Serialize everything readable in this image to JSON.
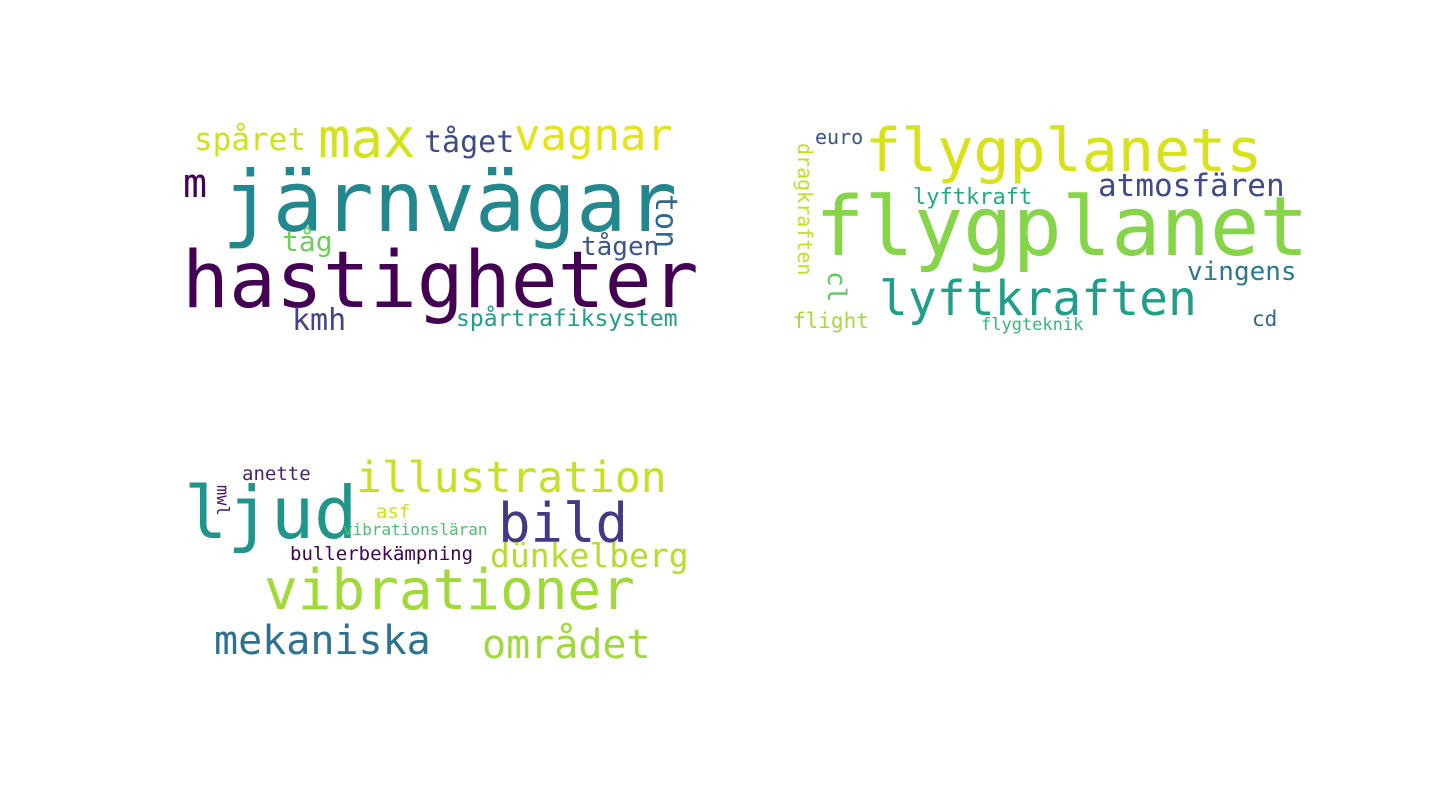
{
  "clouds": [
    {
      "words": [
        {
          "text": "järnvägar",
          "color": "#23888e"
        },
        {
          "text": "hastigheter",
          "color": "#440154"
        },
        {
          "text": "max",
          "color": "#d2e21b"
        },
        {
          "text": "vagnar",
          "color": "#e5e419"
        },
        {
          "text": "spåret",
          "color": "#d0e11c"
        },
        {
          "text": "tåget",
          "color": "#3e4a89"
        },
        {
          "text": "m",
          "color": "#440154"
        },
        {
          "text": "ton",
          "color": "#31688e"
        },
        {
          "text": "tåg",
          "color": "#6ece58"
        },
        {
          "text": "tågen",
          "color": "#3b528b"
        },
        {
          "text": "kmh",
          "color": "#414487"
        },
        {
          "text": "spårtrafiksystem",
          "color": "#1f9e89"
        }
      ]
    },
    {
      "words": [
        {
          "text": "flygplanets",
          "color": "#d8e219"
        },
        {
          "text": "flygplanet",
          "color": "#86d549"
        },
        {
          "text": "euro",
          "color": "#3b528b"
        },
        {
          "text": "atmosfären",
          "color": "#3e4a89"
        },
        {
          "text": "lyftkraft",
          "color": "#22a884"
        },
        {
          "text": "dragkraften",
          "color": "#c2df23"
        },
        {
          "text": "lyftkraften",
          "color": "#1f9e89"
        },
        {
          "text": "vingens",
          "color": "#2a788e"
        },
        {
          "text": "cl",
          "color": "#5ec962"
        },
        {
          "text": "flight",
          "color": "#a5db36"
        },
        {
          "text": "flygteknik",
          "color": "#35b779"
        },
        {
          "text": "cd",
          "color": "#31688e"
        }
      ]
    },
    {
      "words": [
        {
          "text": "ljud",
          "color": "#1f968b"
        },
        {
          "text": "illustration",
          "color": "#c8e020"
        },
        {
          "text": "bild",
          "color": "#443983"
        },
        {
          "text": "anette",
          "color": "#481f70"
        },
        {
          "text": "mwl",
          "color": "#481567"
        },
        {
          "text": "asf",
          "color": "#d0e11c"
        },
        {
          "text": "vibrationsläran",
          "color": "#4ac16d"
        },
        {
          "text": "bullerbekämpning",
          "color": "#440154"
        },
        {
          "text": "dünkelberg",
          "color": "#b5de2b"
        },
        {
          "text": "vibrationer",
          "color": "#a0da39"
        },
        {
          "text": "mekaniska",
          "color": "#2c728e"
        },
        {
          "text": "området",
          "color": "#9fda3a"
        }
      ]
    }
  ]
}
